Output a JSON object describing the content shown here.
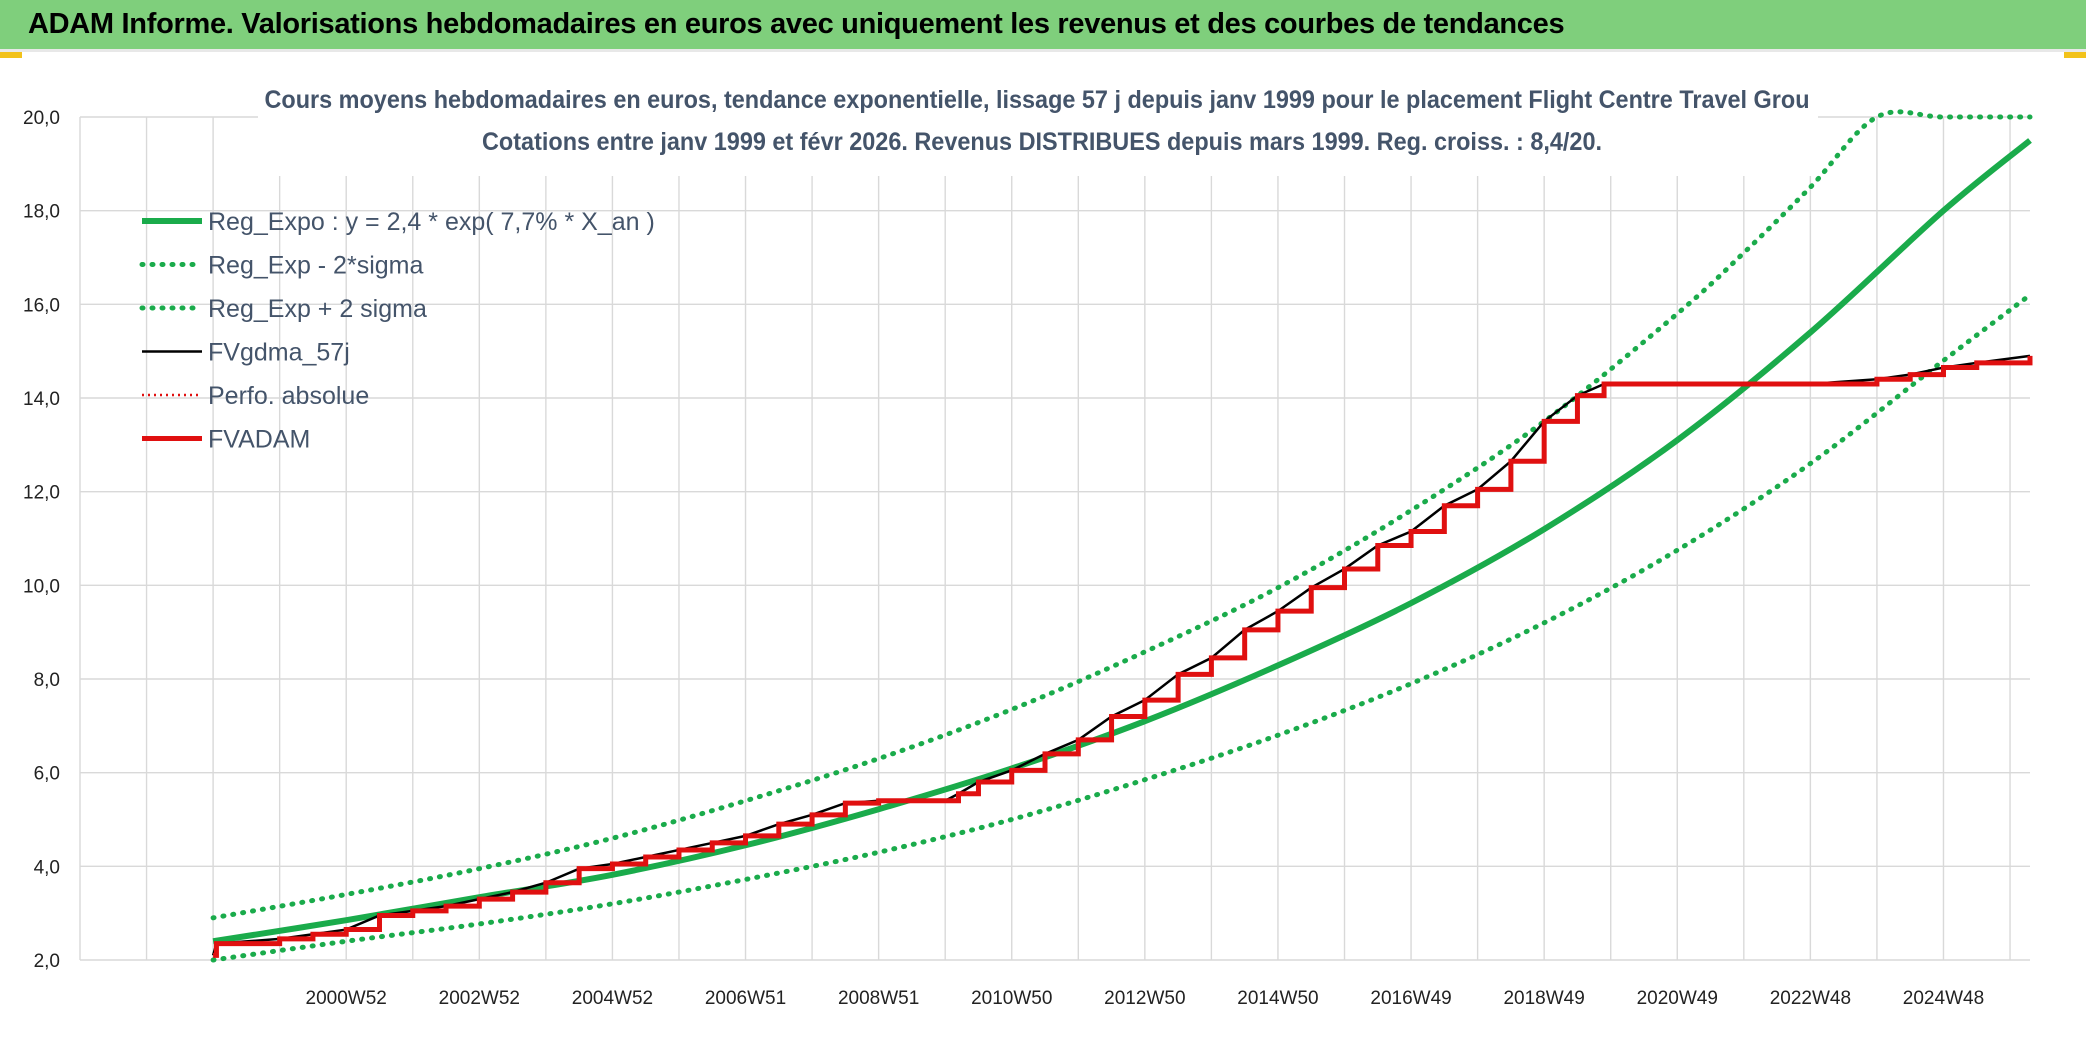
{
  "header": {
    "title": "ADAM Informe. Valorisations hebdomadaires en euros avec uniquement les revenus et des courbes de tendances"
  },
  "colors": {
    "banner": "#7fcf7c",
    "reg_expo": "#1aab4b",
    "fvgdma": "#000000",
    "perfo": "#e01010",
    "fvadam": "#e01010",
    "grid": "#d9d9d9"
  },
  "chart_data": {
    "type": "line",
    "title": "Cours moyens hebdomadaires en euros, tendance exponentielle, lissage 57 j depuis janv 1999 pour le placement Flight Centre Travel Grou",
    "subtitle": "Cotations entre janv 1999 et févr 2026. Revenus DISTRIBUES depuis mars 1999. Reg. croiss. : 8,4/20.",
    "xlabel": "",
    "ylabel": "",
    "ylim": [
      2,
      20
    ],
    "xlim": [
      1997,
      2026.3
    ],
    "grid": true,
    "legend_position": "top-left",
    "yticks": [
      "2,0",
      "4,0",
      "6,0",
      "8,0",
      "10,0",
      "12,0",
      "14,0",
      "16,0",
      "18,0",
      "20,0"
    ],
    "xticks": [
      {
        "label": "2000W52",
        "x": 2001
      },
      {
        "label": "2002W52",
        "x": 2003
      },
      {
        "label": "2004W52",
        "x": 2005
      },
      {
        "label": "2006W51",
        "x": 2007
      },
      {
        "label": "2008W51",
        "x": 2009
      },
      {
        "label": "2010W50",
        "x": 2011
      },
      {
        "label": "2012W50",
        "x": 2013
      },
      {
        "label": "2014W50",
        "x": 2015
      },
      {
        "label": "2016W49",
        "x": 2017
      },
      {
        "label": "2018W49",
        "x": 2019
      },
      {
        "label": "2020W49",
        "x": 2021
      },
      {
        "label": "2022W48",
        "x": 2023
      },
      {
        "label": "2024W48",
        "x": 2025
      }
    ],
    "series": [
      {
        "name": "Reg_Expo : y = 2,4 * exp( 7,7% *  X_an )",
        "style": "solid-thick",
        "color": "#1aab4b",
        "x": [
          1999,
          2001,
          2003,
          2005,
          2007,
          2009,
          2011,
          2013,
          2015,
          2017,
          2019,
          2021,
          2023,
          2025,
          2026.3
        ],
        "values": [
          2.4,
          2.85,
          3.34,
          3.82,
          4.45,
          5.22,
          6.09,
          7.1,
          8.29,
          9.62,
          11.2,
          13.1,
          15.4,
          18.0,
          19.5
        ]
      },
      {
        "name": "Reg_Exp - 2*sigma",
        "style": "dotted",
        "color": "#1aab4b",
        "x": [
          1999,
          2001,
          2003,
          2005,
          2007,
          2009,
          2011,
          2013,
          2015,
          2017,
          2019,
          2021,
          2023,
          2025,
          2026.3
        ],
        "values": [
          2.0,
          2.4,
          2.77,
          3.2,
          3.72,
          4.3,
          5.0,
          5.85,
          6.8,
          7.9,
          9.2,
          10.75,
          12.6,
          14.8,
          16.2
        ]
      },
      {
        "name": "Reg_Exp + 2 sigma",
        "style": "dotted",
        "color": "#1aab4b",
        "x": [
          1999,
          2001,
          2003,
          2005,
          2007,
          2009,
          2011,
          2013,
          2015,
          2017,
          2019,
          2021,
          2022,
          2023,
          2024,
          2025,
          2026.3
        ],
        "values": [
          2.9,
          3.4,
          3.95,
          4.6,
          5.4,
          6.3,
          7.35,
          8.58,
          9.95,
          11.6,
          13.5,
          15.8,
          17.1,
          18.5,
          20.0,
          20.0,
          20.0
        ]
      },
      {
        "name": "FVgdma_57j",
        "style": "solid",
        "color": "#000000"
      },
      {
        "name": "Perfo. absolue",
        "style": "dotted-thin",
        "color": "#e01010"
      },
      {
        "name": "FVADAM",
        "style": "step-thick",
        "color": "#e01010",
        "x": [
          1999.0,
          1999.05,
          2000.0,
          2000.5,
          2001.0,
          2001.5,
          2002.0,
          2002.5,
          2003.0,
          2003.5,
          2004.0,
          2004.5,
          2005.0,
          2005.5,
          2006.0,
          2006.5,
          2007.0,
          2007.5,
          2008.0,
          2008.5,
          2009.0,
          2010.0,
          2010.2,
          2010.5,
          2011.0,
          2011.5,
          2012.0,
          2012.5,
          2013.0,
          2013.5,
          2014.0,
          2014.5,
          2015.0,
          2015.5,
          2016.0,
          2016.5,
          2017.0,
          2017.5,
          2018.0,
          2018.5,
          2019.0,
          2019.5,
          2019.9,
          2020.3,
          2021.0,
          2022.0,
          2023.0,
          2024.0,
          2024.5,
          2025.0,
          2025.5,
          2026.3
        ],
        "values": [
          2.1,
          2.35,
          2.45,
          2.55,
          2.65,
          2.95,
          3.05,
          3.15,
          3.3,
          3.45,
          3.65,
          3.95,
          4.05,
          4.2,
          4.35,
          4.5,
          4.65,
          4.9,
          5.1,
          5.35,
          5.4,
          5.4,
          5.55,
          5.8,
          6.05,
          6.4,
          6.7,
          7.2,
          7.55,
          8.1,
          8.45,
          9.05,
          9.45,
          9.95,
          10.35,
          10.85,
          11.15,
          11.7,
          12.05,
          12.65,
          13.5,
          14.05,
          14.3,
          14.3,
          14.3,
          14.3,
          14.3,
          14.4,
          14.5,
          14.65,
          14.75,
          14.9
        ]
      }
    ]
  }
}
